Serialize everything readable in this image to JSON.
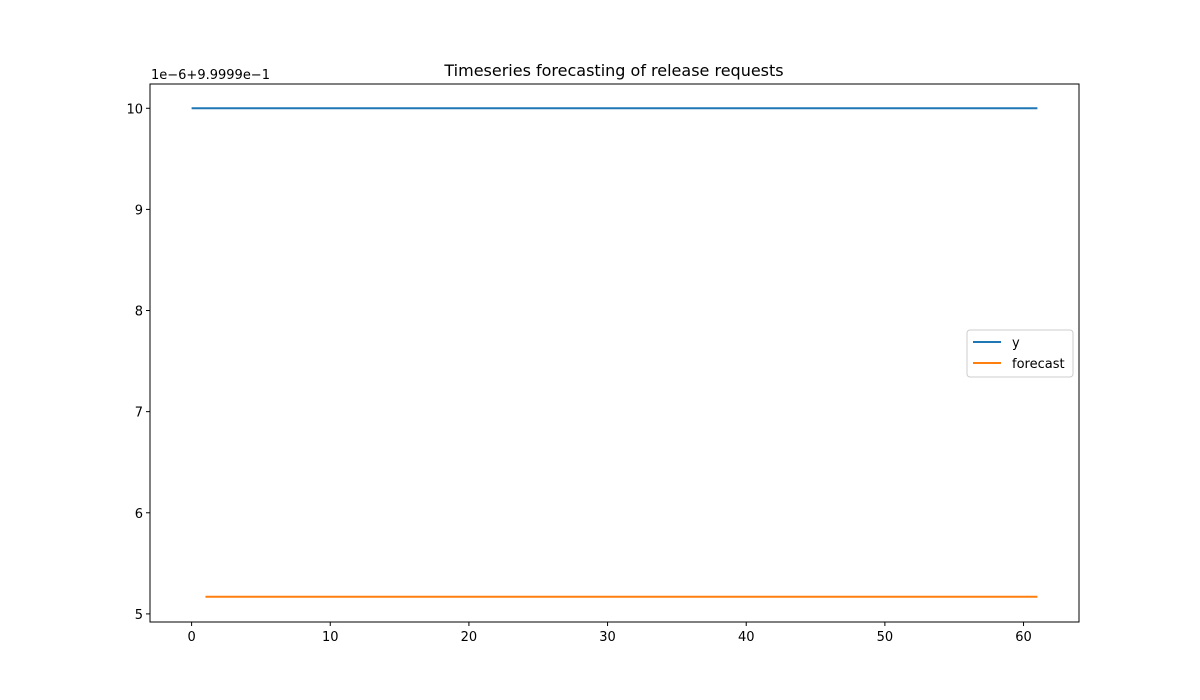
{
  "chart_data": {
    "type": "line",
    "title": "Timeseries forecasting of release requests",
    "xlabel": "",
    "ylabel": "",
    "y_offset_text": "1e−6+9.9999e−1",
    "xlim": [
      -3,
      64
    ],
    "ylim": [
      4.92,
      10.24
    ],
    "x_ticks": [
      0,
      10,
      20,
      30,
      40,
      50,
      60
    ],
    "y_ticks": [
      5,
      6,
      7,
      8,
      9,
      10
    ],
    "grid": false,
    "legend_position": "center-right",
    "series": [
      {
        "name": "y",
        "color": "#1f77b4",
        "x": [
          0,
          61
        ],
        "values": [
          10.0,
          10.0
        ]
      },
      {
        "name": "forecast",
        "color": "#ff7f0e",
        "x": [
          1,
          61
        ],
        "values": [
          5.17,
          5.17
        ]
      }
    ]
  }
}
